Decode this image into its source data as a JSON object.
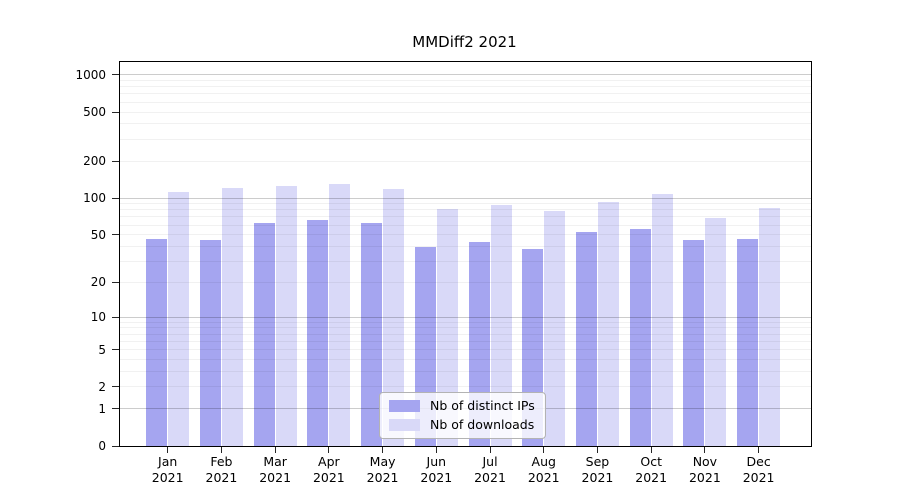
{
  "chart_data": {
    "type": "bar",
    "title": "MMDiff2 2021",
    "year": "2021",
    "categories": [
      "Jan",
      "Feb",
      "Mar",
      "Apr",
      "May",
      "Jun",
      "Jul",
      "Aug",
      "Sep",
      "Oct",
      "Nov",
      "Dec"
    ],
    "series": [
      {
        "name": "Nb of distinct IPs",
        "color": "#a5a5f0",
        "values": [
          46,
          45,
          62,
          66,
          62,
          40,
          44,
          38,
          53,
          56,
          45,
          46
        ]
      },
      {
        "name": "Nb of downloads",
        "color": "#d9d9f8",
        "values": [
          113,
          121,
          125,
          130,
          119,
          81,
          87,
          78,
          93,
          107,
          69,
          83
        ]
      }
    ],
    "xlabel": "",
    "ylabel": "",
    "yticks": [
      0,
      1,
      2,
      5,
      10,
      20,
      50,
      100,
      200,
      500,
      1000
    ],
    "scale": "log10(value+1)",
    "ylim": [
      0,
      1259
    ],
    "grid": {
      "major": [
        1,
        10,
        100,
        1000
      ],
      "minor": [
        2,
        3,
        4,
        5,
        6,
        7,
        8,
        9,
        20,
        30,
        40,
        50,
        60,
        70,
        80,
        90,
        200,
        300,
        400,
        500,
        600,
        700,
        800,
        900
      ]
    },
    "legend_position": "lower center",
    "colors": {
      "major_grid": "#cccccc",
      "minor_grid": "#f0f0f0",
      "axis": "#000000",
      "background": "#ffffff"
    }
  }
}
